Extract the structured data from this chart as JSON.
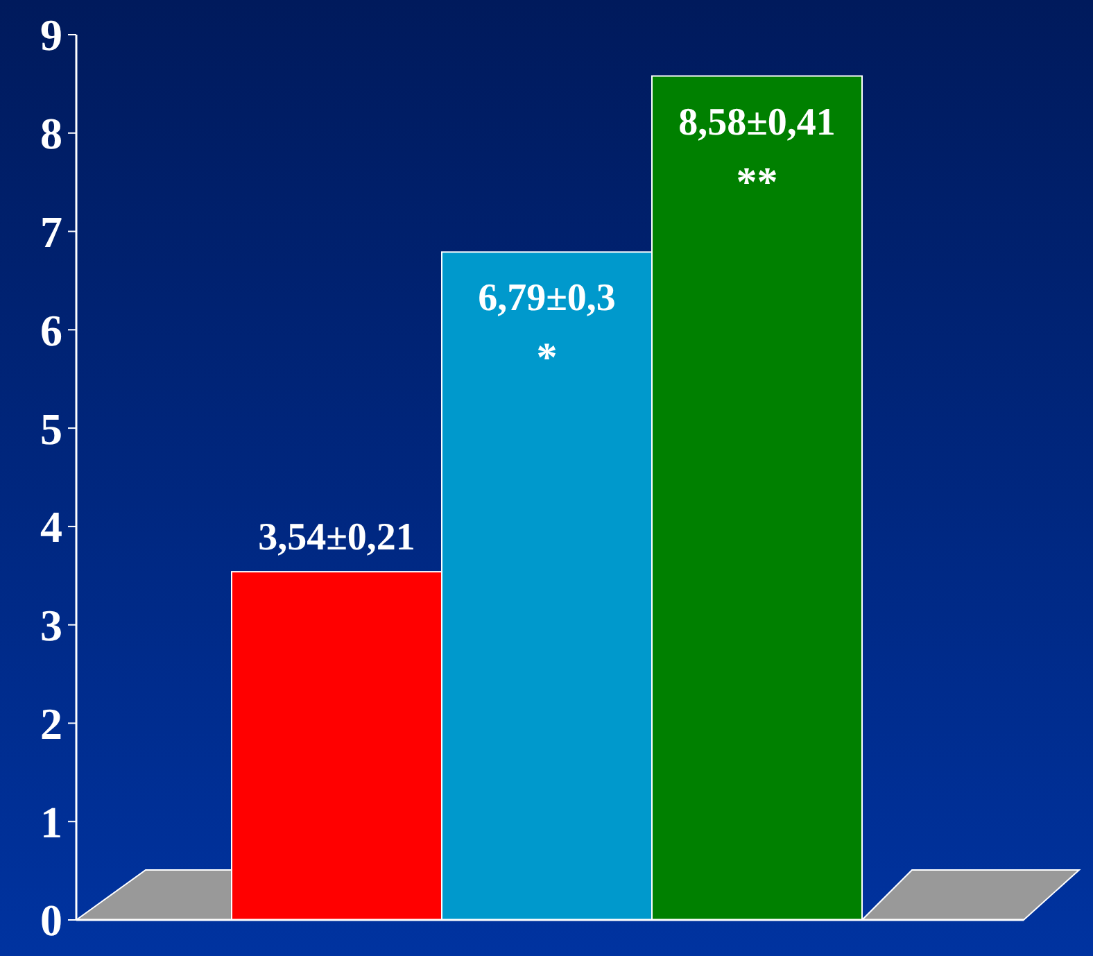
{
  "chart_data": {
    "type": "bar",
    "categories": [
      null,
      null,
      null
    ],
    "values": [
      3.54,
      6.79,
      8.58
    ],
    "colors": [
      "#ff0000",
      "#0099cc",
      "#008000"
    ],
    "value_labels": [
      "3,54±0,21",
      "6,79±0,3",
      "8,58±0,41"
    ],
    "annotations": [
      "*",
      "**"
    ],
    "ylim": [
      0,
      9
    ],
    "yticks": [
      0,
      1,
      2,
      3,
      4,
      5,
      6,
      7,
      8,
      9
    ],
    "grid": false
  }
}
